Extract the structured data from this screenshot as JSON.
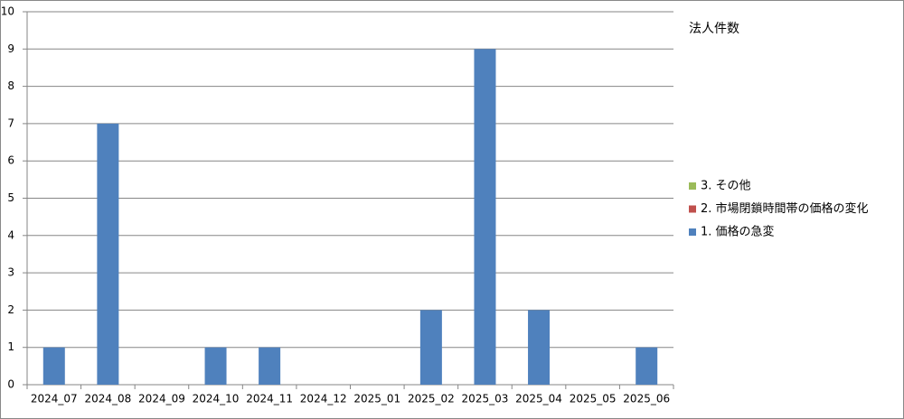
{
  "chart_data": {
    "type": "bar",
    "stacked": true,
    "legend_title": "法人件数",
    "categories": [
      "2024_07",
      "2024_08",
      "2024_09",
      "2024_10",
      "2024_11",
      "2024_12",
      "2025_01",
      "2025_02",
      "2025_03",
      "2025_04",
      "2025_05",
      "2025_06"
    ],
    "series": [
      {
        "name": "1. 価格の急変",
        "color": "#4f81bd",
        "values": [
          1,
          7,
          0,
          1,
          1,
          0,
          0,
          2,
          9,
          2,
          0,
          1
        ]
      },
      {
        "name": "2. 市場閉鎖時間帯の価格の変化",
        "color": "#c0504d",
        "values": [
          0,
          0,
          0,
          0,
          0,
          0,
          0,
          0,
          0,
          0,
          0,
          0
        ]
      },
      {
        "name": "3. その他",
        "color": "#9bbb59",
        "values": [
          0,
          0,
          0,
          0,
          0,
          0,
          0,
          0,
          0,
          0,
          0,
          0
        ]
      }
    ],
    "ylim": [
      0,
      10
    ],
    "yticks": [
      0,
      1,
      2,
      3,
      4,
      5,
      6,
      7,
      8,
      9,
      10
    ],
    "grid": true,
    "legend": "right"
  }
}
